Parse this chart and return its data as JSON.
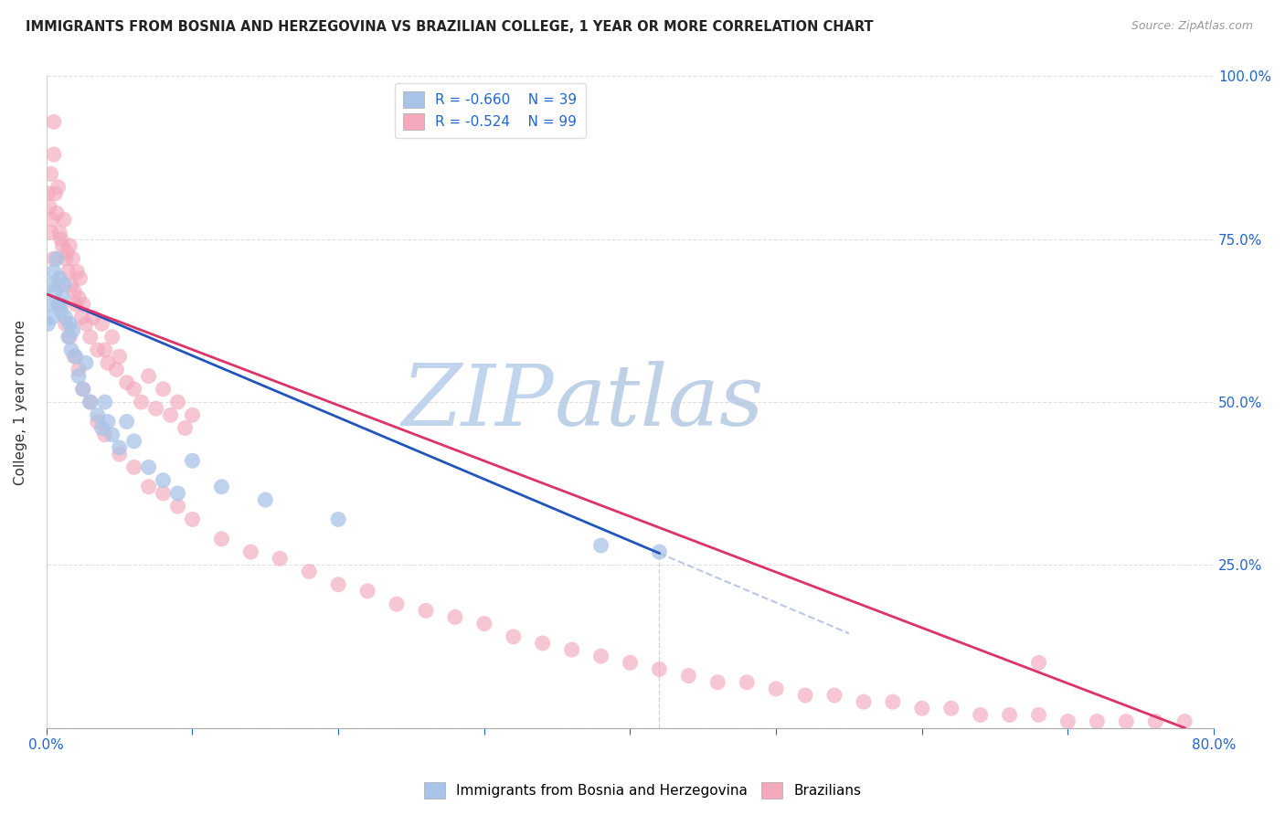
{
  "title": "IMMIGRANTS FROM BOSNIA AND HERZEGOVINA VS BRAZILIAN COLLEGE, 1 YEAR OR MORE CORRELATION CHART",
  "source": "Source: ZipAtlas.com",
  "ylabel": "College, 1 year or more",
  "xlim": [
    0.0,
    0.8
  ],
  "ylim": [
    0.0,
    1.0
  ],
  "bosnia_R": -0.66,
  "bosnia_N": 39,
  "brazil_R": -0.524,
  "brazil_N": 99,
  "bosnia_color": "#a8c4e8",
  "brazil_color": "#f4a8bc",
  "bosnia_line_color": "#2255bb",
  "brazil_line_color": "#dd3366",
  "legend_label_bosnia": "Immigrants from Bosnia and Herzegovina",
  "legend_label_brazil": "Brazilians",
  "bosnia_x": [
    0.001,
    0.002,
    0.003,
    0.004,
    0.005,
    0.006,
    0.007,
    0.008,
    0.009,
    0.01,
    0.011,
    0.012,
    0.013,
    0.015,
    0.016,
    0.017,
    0.018,
    0.02,
    0.022,
    0.025,
    0.027,
    0.03,
    0.035,
    0.038,
    0.04,
    0.042,
    0.045,
    0.05,
    0.055,
    0.06,
    0.07,
    0.08,
    0.09,
    0.1,
    0.12,
    0.15,
    0.2,
    0.38,
    0.42
  ],
  "bosnia_y": [
    0.62,
    0.65,
    0.68,
    0.63,
    0.7,
    0.67,
    0.72,
    0.65,
    0.69,
    0.64,
    0.66,
    0.68,
    0.63,
    0.6,
    0.62,
    0.58,
    0.61,
    0.57,
    0.54,
    0.52,
    0.56,
    0.5,
    0.48,
    0.46,
    0.5,
    0.47,
    0.45,
    0.43,
    0.47,
    0.44,
    0.4,
    0.38,
    0.36,
    0.41,
    0.37,
    0.35,
    0.32,
    0.28,
    0.27
  ],
  "brazil_x": [
    0.001,
    0.002,
    0.003,
    0.004,
    0.005,
    0.006,
    0.007,
    0.008,
    0.009,
    0.01,
    0.011,
    0.012,
    0.013,
    0.014,
    0.015,
    0.016,
    0.017,
    0.018,
    0.019,
    0.02,
    0.021,
    0.022,
    0.023,
    0.024,
    0.025,
    0.027,
    0.03,
    0.032,
    0.035,
    0.038,
    0.04,
    0.042,
    0.045,
    0.048,
    0.05,
    0.055,
    0.06,
    0.065,
    0.07,
    0.075,
    0.08,
    0.085,
    0.09,
    0.095,
    0.1,
    0.003,
    0.005,
    0.008,
    0.01,
    0.013,
    0.016,
    0.019,
    0.022,
    0.025,
    0.03,
    0.035,
    0.04,
    0.05,
    0.06,
    0.07,
    0.08,
    0.09,
    0.1,
    0.12,
    0.14,
    0.16,
    0.18,
    0.2,
    0.22,
    0.24,
    0.26,
    0.28,
    0.3,
    0.32,
    0.34,
    0.36,
    0.38,
    0.4,
    0.42,
    0.44,
    0.46,
    0.48,
    0.5,
    0.52,
    0.54,
    0.56,
    0.58,
    0.6,
    0.62,
    0.64,
    0.66,
    0.68,
    0.7,
    0.72,
    0.74,
    0.76,
    0.78,
    0.005,
    0.68
  ],
  "brazil_y": [
    0.82,
    0.8,
    0.85,
    0.78,
    0.88,
    0.82,
    0.79,
    0.83,
    0.76,
    0.75,
    0.74,
    0.78,
    0.72,
    0.73,
    0.7,
    0.74,
    0.68,
    0.72,
    0.67,
    0.65,
    0.7,
    0.66,
    0.69,
    0.63,
    0.65,
    0.62,
    0.6,
    0.63,
    0.58,
    0.62,
    0.58,
    0.56,
    0.6,
    0.55,
    0.57,
    0.53,
    0.52,
    0.5,
    0.54,
    0.49,
    0.52,
    0.48,
    0.5,
    0.46,
    0.48,
    0.76,
    0.72,
    0.68,
    0.65,
    0.62,
    0.6,
    0.57,
    0.55,
    0.52,
    0.5,
    0.47,
    0.45,
    0.42,
    0.4,
    0.37,
    0.36,
    0.34,
    0.32,
    0.29,
    0.27,
    0.26,
    0.24,
    0.22,
    0.21,
    0.19,
    0.18,
    0.17,
    0.16,
    0.14,
    0.13,
    0.12,
    0.11,
    0.1,
    0.09,
    0.08,
    0.07,
    0.07,
    0.06,
    0.05,
    0.05,
    0.04,
    0.04,
    0.03,
    0.03,
    0.02,
    0.02,
    0.02,
    0.01,
    0.01,
    0.01,
    0.01,
    0.01,
    0.93,
    0.1
  ],
  "bosnia_line_x_start": 0.001,
  "bosnia_line_x_end_solid": 0.42,
  "bosnia_line_x_end_dash": 0.55,
  "bosnia_line_y_start": 0.665,
  "bosnia_line_y_end_solid": 0.268,
  "bosnia_line_y_end_dash": 0.145,
  "brazil_line_x_start": 0.001,
  "brazil_line_x_end": 0.78,
  "brazil_line_y_start": 0.665,
  "brazil_line_y_end": 0.0
}
